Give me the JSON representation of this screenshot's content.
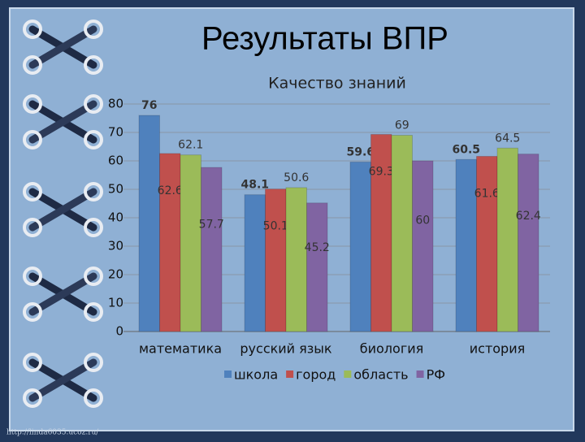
{
  "title": "Результаты ВПР",
  "watermark": "http://linda6035.ucoz.ru/",
  "chart_data": {
    "type": "bar",
    "title": "Качество знаний",
    "categories": [
      "математика",
      "русский язык",
      "биология",
      "история"
    ],
    "series": [
      {
        "name": "школа",
        "color": "#4f81bd",
        "values": [
          76,
          48.1,
          59.6,
          60.5
        ]
      },
      {
        "name": "город",
        "color": "#c0504d",
        "values": [
          62.6,
          50.1,
          69.3,
          61.6
        ]
      },
      {
        "name": "область",
        "color": "#9bbb59",
        "values": [
          62.1,
          50.6,
          69,
          64.5
        ]
      },
      {
        "name": "РФ",
        "color": "#8064a2",
        "values": [
          57.7,
          45.2,
          60,
          62.4
        ]
      }
    ],
    "ylim": [
      0,
      80
    ],
    "yticks": [
      0,
      10,
      20,
      30,
      40,
      50,
      60,
      70,
      80
    ],
    "grid": true,
    "legend": "bottom"
  }
}
